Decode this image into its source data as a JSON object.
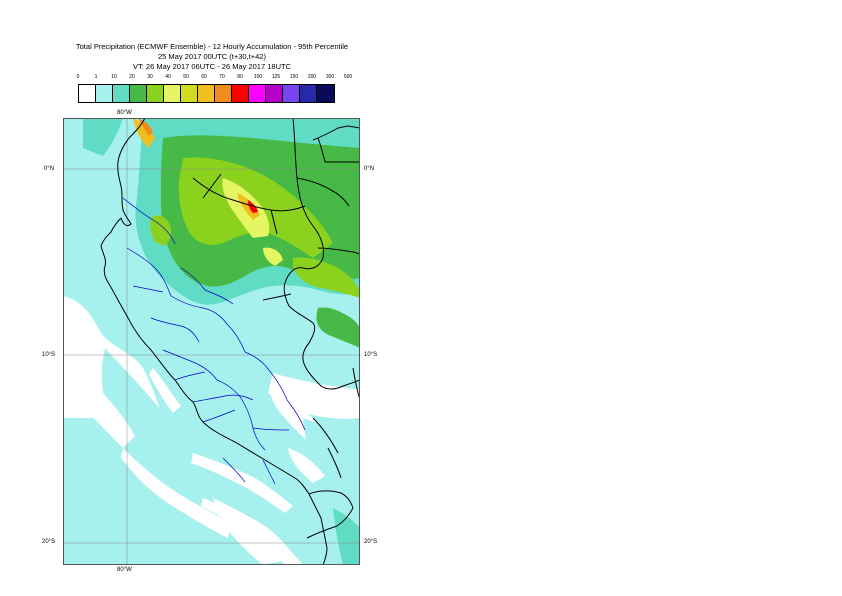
{
  "title": {
    "line1": "Total Precipitation (ECMWF Ensemble) - 12 Hourly Accumulation - 95th Percentile",
    "line2": "25 May 2017 00UTC (t+30,t+42)",
    "line3": "VT: 26 May 2017 06UTC - 26 May 2017 18UTC"
  },
  "legend": {
    "labels": [
      "0",
      "1",
      "10",
      "20",
      "30",
      "40",
      "50",
      "60",
      "70",
      "80",
      "100",
      "125",
      "150",
      "200",
      "300",
      "500"
    ],
    "colors": [
      "#ffffff",
      "#a6f0ee",
      "#5fdcc3",
      "#46b946",
      "#8ad21e",
      "#e6f564",
      "#d2dc1e",
      "#f0be1e",
      "#f08c1e",
      "#ff0000",
      "#ff00ff",
      "#b400c8",
      "#7846f0",
      "#2828aa",
      "#0a0a5a"
    ]
  },
  "axes": {
    "lon_top": "80°W",
    "lon_bottom": "80°W",
    "lat_0_left": "0°N",
    "lat_0_right": "0°N",
    "lat_10_left": "10°S",
    "lat_10_right": "10°S",
    "lat_20_left": "20°S",
    "lat_20_right": "20°S"
  },
  "colors": {
    "coast": "#000000",
    "rivers": "#0000cc",
    "grid": "#888888",
    "frame": "#555555"
  }
}
